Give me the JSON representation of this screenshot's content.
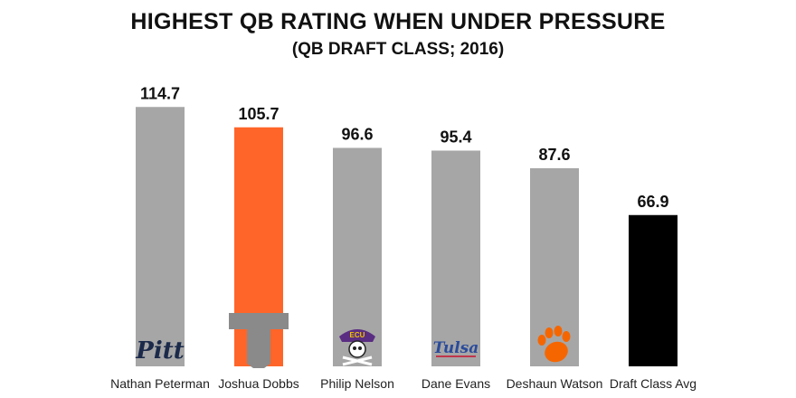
{
  "chart_data": {
    "type": "bar",
    "title": "HIGHEST QB RATING WHEN UNDER PRESSURE",
    "subtitle": "(QB DRAFT CLASS; 2016)",
    "categories": [
      "Nathan Peterman",
      "Joshua Dobbs",
      "Philip Nelson",
      "Dane Evans",
      "Deshaun Watson",
      "Draft Class Avg"
    ],
    "values": [
      114.7,
      105.7,
      96.6,
      95.4,
      87.6,
      66.9
    ],
    "value_labels": [
      "114.7",
      "105.7",
      "96.6",
      "95.4",
      "87.6",
      "66.9"
    ],
    "bar_colors": [
      "#a6a6a6",
      "#ff6528",
      "#a6a6a6",
      "#a6a6a6",
      "#a6a6a6",
      "#000000"
    ],
    "logos": [
      {
        "icon": "pitt-logo",
        "text": "Pitt",
        "color": "#1b2a4a"
      },
      {
        "icon": "tennessee-power-t-logo",
        "text": "",
        "color": "#8a8a8a"
      },
      {
        "icon": "ecu-pirate-logo",
        "text": "ECU",
        "color": "#5a2d82"
      },
      {
        "icon": "tulsa-logo",
        "text": "Tulsa",
        "color": "#2a4b9b"
      },
      {
        "icon": "clemson-paw-logo",
        "text": "",
        "color": "#f56600"
      },
      null
    ],
    "ylim": [
      0,
      120
    ],
    "xlabel": "",
    "ylabel": "",
    "grid": false,
    "legend": "none"
  }
}
